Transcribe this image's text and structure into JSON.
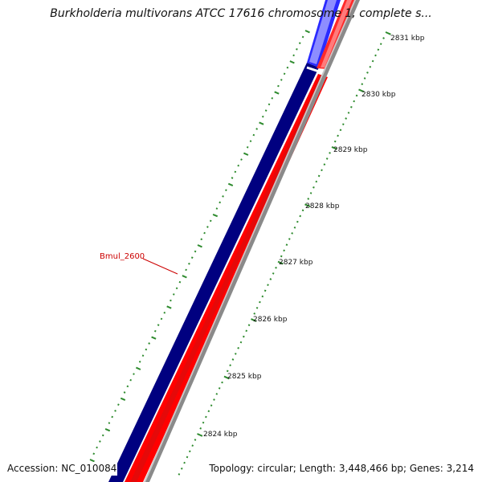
{
  "title": "Burkholderia multivorans ATCC 17616 chromosome 1, complete s...",
  "footer": {
    "accession": "Accession: NC_010084",
    "summary": "Topology: circular; Length: 3,448,466 bp; Genes: 3,214"
  },
  "gene_label": "Bmul_2600",
  "scale_ticks": [
    "2824 kbp",
    "2825 kbp",
    "2826 kbp",
    "2827 kbp",
    "2828 kbp",
    "2829 kbp",
    "2830 kbp",
    "2831 kbp"
  ],
  "colors": {
    "forward_strand": "#ff0000",
    "reverse_strand": "#000080",
    "highlight_forward": "#ff8080",
    "highlight_reverse": "#2a2aff",
    "backbone": "#808080",
    "tick_marks": "#2e8b2e",
    "gene_label": "#cc0000"
  }
}
